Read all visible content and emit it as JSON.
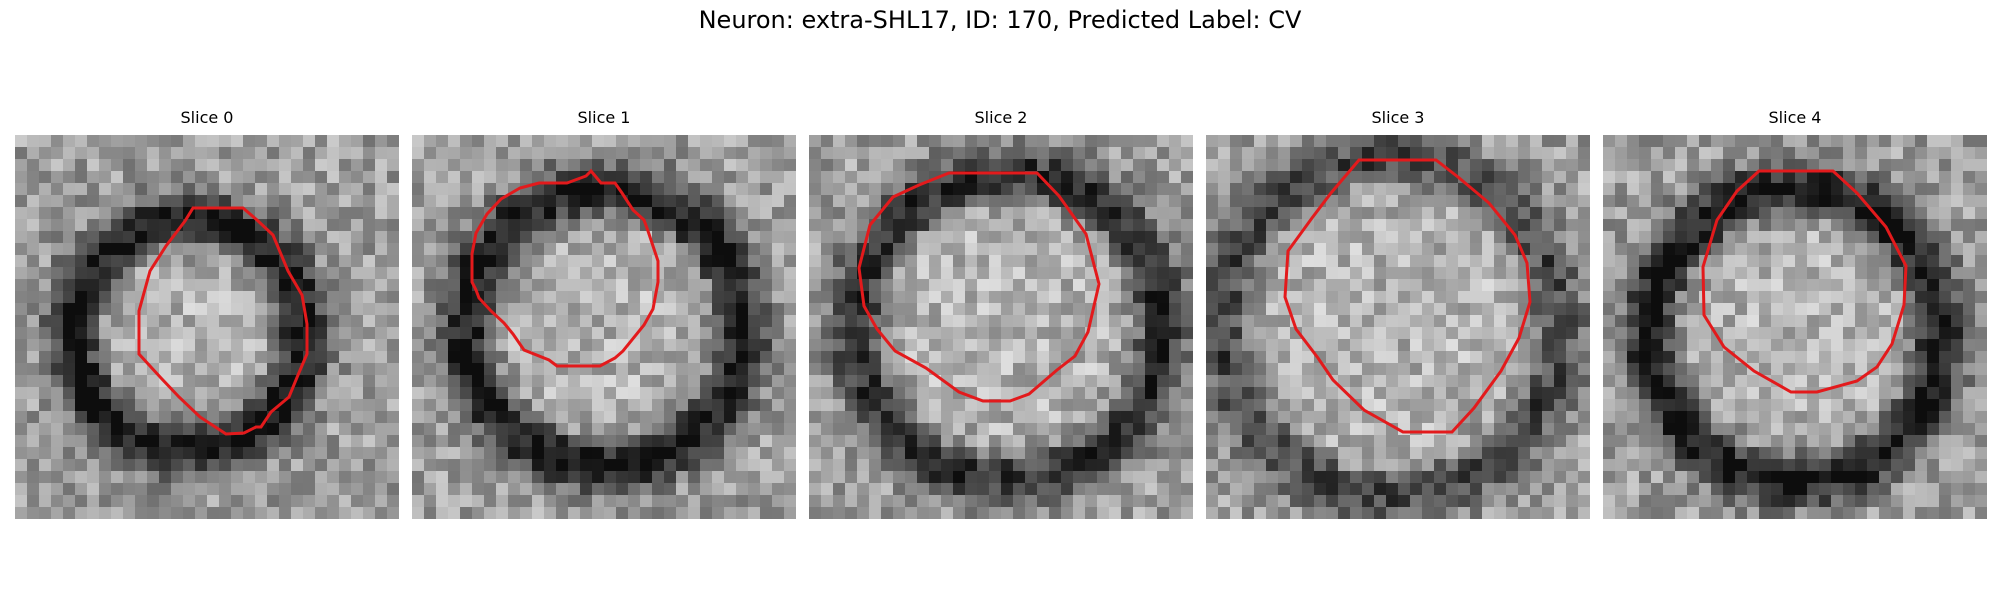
{
  "figure": {
    "title": "Neuron: extra-SHL17, ID: 170, Predicted Label: CV",
    "contour_color": "#e31a1c"
  },
  "slices": [
    {
      "title": "Slice 0"
    },
    {
      "title": "Slice 1"
    },
    {
      "title": "Slice 2"
    },
    {
      "title": "Slice 3"
    },
    {
      "title": "Slice 4"
    }
  ]
}
